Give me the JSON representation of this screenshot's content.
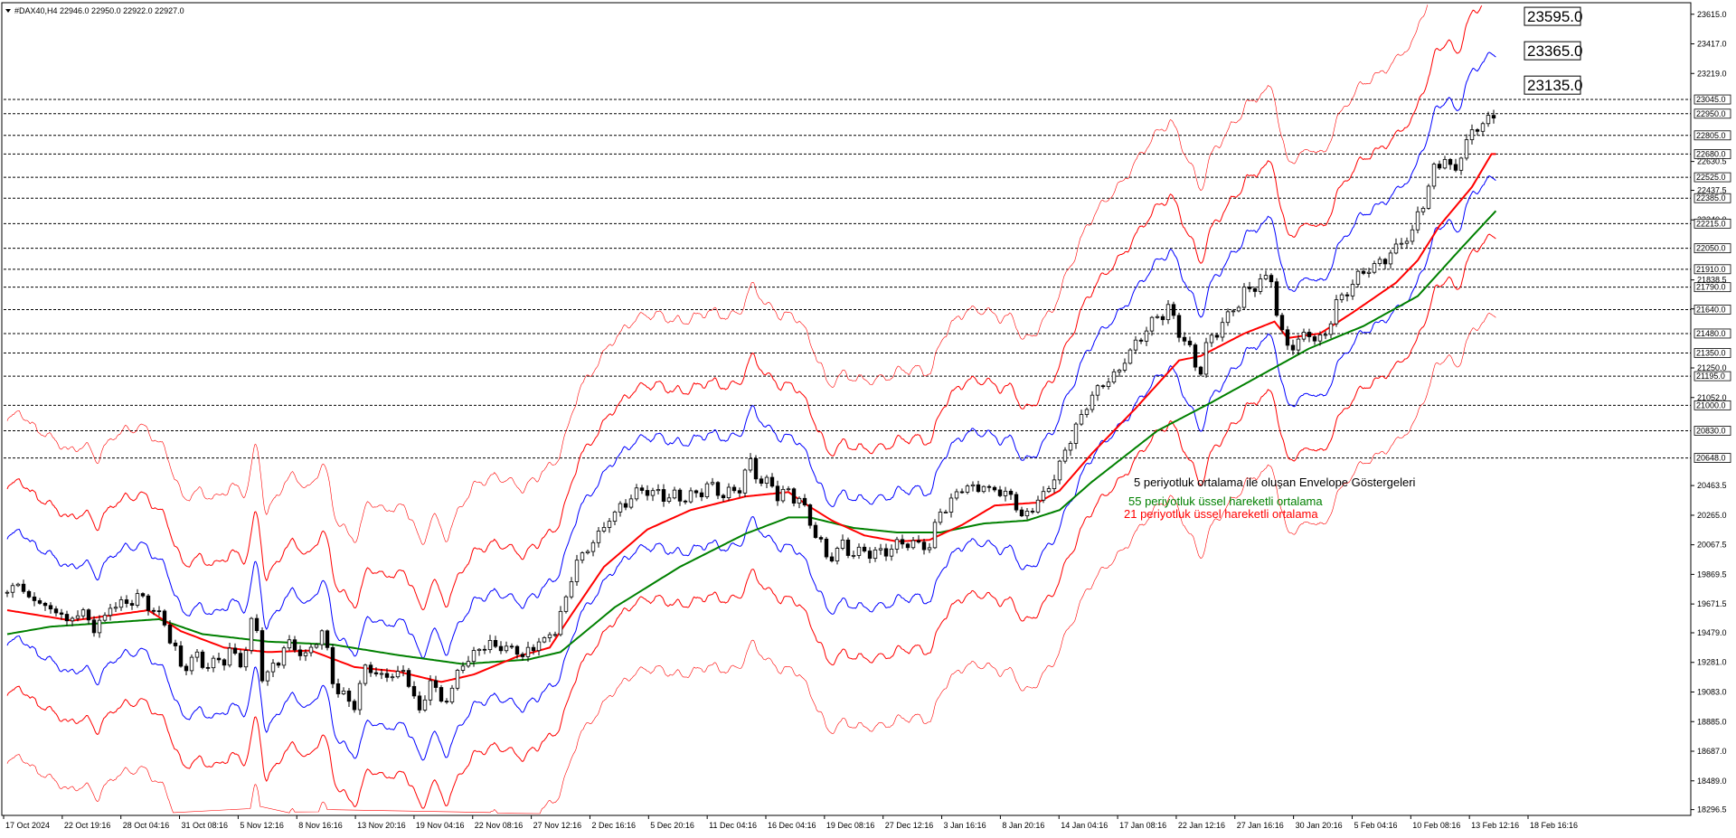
{
  "header": {
    "symbol_line": "#DAX40,H4  22946.0 22950.0 22922.0 22927.0"
  },
  "colors": {
    "up_candle": "#ffffff",
    "down_candle": "#000000",
    "ema21": "#ff0000",
    "ema55": "#008000",
    "inner_envelope": "#0000ff",
    "middle_envelope": "#ff0000",
    "outer_envelope": "#ff0000"
  },
  "annotations": {
    "title": "5 periyotluk ortalama ile oluşan Envelope Göstergeleri",
    "ema55": "55 periyotluk üssel hareketli ortalama",
    "ema21": "21 periyotluk üssel hareketli ortalama"
  },
  "chart_data": {
    "type": "candlestick",
    "ylim": [
      18270,
      23680
    ],
    "y_ticks": [
      "23615.0",
      "23417.0",
      "23219.0",
      "22630.5",
      "22437.5",
      "22240.0",
      "21838.5",
      "21645.0",
      "21250.0",
      "21052.0",
      "20463.5",
      "20265.0",
      "20067.5",
      "19869.5",
      "19671.5",
      "19479.0",
      "19281.0",
      "19083.0",
      "18885.0",
      "18687.0",
      "18489.0",
      "18296.5"
    ],
    "y_tick_values": [
      23615,
      23417,
      23219,
      22630.5,
      22437.5,
      22240,
      21838.5,
      21645,
      21250,
      21052,
      20463.5,
      20265,
      20067.5,
      19869.5,
      19671.5,
      19479,
      19281,
      19083,
      18885,
      18687,
      18489,
      18296.5
    ],
    "x_ticks": [
      "17 Oct 2024",
      "22 Oct 19:16",
      "28 Oct 04:16",
      "31 Oct 08:16",
      "5 Nov 12:16",
      "8 Nov 16:16",
      "13 Nov 20:16",
      "19 Nov 04:16",
      "22 Nov 08:16",
      "27 Nov 12:16",
      "2 Dec 16:16",
      "5 Dec 20:16",
      "11 Dec 04:16",
      "16 Dec 04:16",
      "19 Dec 08:16",
      "27 Dec 12:16",
      "3 Jan 16:16",
      "8 Jan 20:16",
      "14 Jan 04:16",
      "17 Jan 08:16",
      "22 Jan 12:16",
      "27 Jan 16:16",
      "30 Jan 20:16",
      "5 Feb 04:16",
      "10 Feb 08:16",
      "13 Feb 12:16",
      "18 Feb 16:16"
    ],
    "levels": [
      "23045.0",
      "22950.0",
      "22805.0",
      "22680.0",
      "22525.0",
      "22385.0",
      "22215.0",
      "22050.0",
      "21910.0",
      "21790.0",
      "21640.0",
      "21480.0",
      "21350.0",
      "21195.0",
      "21000.0",
      "20830.0",
      "20648.0"
    ],
    "level_values": [
      23045,
      22950,
      22805,
      22680,
      22525,
      22385,
      22215,
      22050,
      21910,
      21790,
      21640,
      21480,
      21350,
      21195,
      21000,
      20830,
      20648
    ],
    "envelope_labels": [
      "23595.0",
      "23365.0",
      "23135.0"
    ],
    "envelope_label_values": [
      23595,
      23365,
      23135
    ],
    "close_anchors": [
      [
        0,
        19750
      ],
      [
        10,
        19820
      ],
      [
        20,
        19720
      ],
      [
        30,
        19680
      ],
      [
        40,
        19640
      ],
      [
        55,
        19560
      ],
      [
        70,
        19600
      ],
      [
        80,
        19500
      ],
      [
        95,
        19650
      ],
      [
        110,
        19700
      ],
      [
        125,
        19720
      ],
      [
        145,
        19550
      ],
      [
        160,
        19250
      ],
      [
        175,
        19300
      ],
      [
        190,
        19250
      ],
      [
        205,
        19350
      ],
      [
        218,
        19280
      ],
      [
        228,
        19650
      ],
      [
        236,
        19150
      ],
      [
        248,
        19300
      ],
      [
        262,
        19420
      ],
      [
        275,
        19300
      ],
      [
        290,
        19500
      ],
      [
        300,
        19150
      ],
      [
        310,
        19050
      ],
      [
        320,
        19000
      ],
      [
        330,
        19250
      ],
      [
        345,
        19180
      ],
      [
        360,
        19220
      ],
      [
        372,
        19150
      ],
      [
        380,
        18920
      ],
      [
        390,
        19180
      ],
      [
        402,
        19000
      ],
      [
        415,
        19200
      ],
      [
        430,
        19350
      ],
      [
        445,
        19400
      ],
      [
        460,
        19380
      ],
      [
        475,
        19320
      ],
      [
        490,
        19420
      ],
      [
        505,
        19500
      ],
      [
        515,
        19700
      ],
      [
        525,
        19950
      ],
      [
        540,
        20100
      ],
      [
        555,
        20250
      ],
      [
        570,
        20350
      ],
      [
        585,
        20420
      ],
      [
        600,
        20420
      ],
      [
        615,
        20380
      ],
      [
        630,
        20400
      ],
      [
        645,
        20450
      ],
      [
        660,
        20400
      ],
      [
        675,
        20450
      ],
      [
        685,
        20620
      ],
      [
        695,
        20500
      ],
      [
        710,
        20420
      ],
      [
        722,
        20420
      ],
      [
        730,
        20380
      ],
      [
        738,
        20250
      ],
      [
        748,
        20100
      ],
      [
        755,
        19950
      ],
      [
        765,
        20050
      ],
      [
        780,
        20020
      ],
      [
        795,
        20000
      ],
      [
        810,
        20030
      ],
      [
        825,
        20070
      ],
      [
        840,
        20080
      ],
      [
        850,
        20050
      ],
      [
        858,
        20250
      ],
      [
        870,
        20380
      ],
      [
        885,
        20450
      ],
      [
        900,
        20450
      ],
      [
        915,
        20400
      ],
      [
        925,
        20400
      ],
      [
        935,
        20250
      ],
      [
        945,
        20300
      ],
      [
        955,
        20400
      ],
      [
        965,
        20500
      ],
      [
        975,
        20700
      ],
      [
        985,
        20850
      ],
      [
        995,
        21000
      ],
      [
        1010,
        21150
      ],
      [
        1025,
        21250
      ],
      [
        1040,
        21400
      ],
      [
        1055,
        21550
      ],
      [
        1070,
        21650
      ],
      [
        1080,
        21500
      ],
      [
        1090,
        21350
      ],
      [
        1098,
        21200
      ],
      [
        1108,
        21450
      ],
      [
        1120,
        21550
      ],
      [
        1135,
        21700
      ],
      [
        1150,
        21800
      ],
      [
        1165,
        21870
      ],
      [
        1170,
        21620
      ],
      [
        1178,
        21380
      ],
      [
        1188,
        21420
      ],
      [
        1200,
        21480
      ],
      [
        1212,
        21420
      ],
      [
        1222,
        21640
      ],
      [
        1235,
        21780
      ],
      [
        1250,
        21900
      ],
      [
        1265,
        21950
      ],
      [
        1280,
        22050
      ],
      [
        1295,
        22150
      ],
      [
        1300,
        22300
      ],
      [
        1308,
        22380
      ],
      [
        1315,
        22600
      ],
      [
        1325,
        22640
      ],
      [
        1335,
        22560
      ],
      [
        1345,
        22780
      ],
      [
        1352,
        22850
      ],
      [
        1360,
        22900
      ],
      [
        1368,
        22950
      ],
      [
        1372,
        22927
      ]
    ],
    "ema21_anchors": [
      [
        0,
        19630
      ],
      [
        60,
        19560
      ],
      [
        130,
        19630
      ],
      [
        160,
        19490
      ],
      [
        200,
        19380
      ],
      [
        240,
        19350
      ],
      [
        280,
        19360
      ],
      [
        320,
        19250
      ],
      [
        360,
        19220
      ],
      [
        400,
        19150
      ],
      [
        430,
        19200
      ],
      [
        470,
        19320
      ],
      [
        500,
        19380
      ],
      [
        520,
        19600
      ],
      [
        550,
        19920
      ],
      [
        590,
        20170
      ],
      [
        630,
        20300
      ],
      [
        680,
        20390
      ],
      [
        720,
        20420
      ],
      [
        740,
        20320
      ],
      [
        760,
        20230
      ],
      [
        790,
        20130
      ],
      [
        820,
        20090
      ],
      [
        850,
        20100
      ],
      [
        880,
        20200
      ],
      [
        910,
        20330
      ],
      [
        930,
        20340
      ],
      [
        950,
        20350
      ],
      [
        970,
        20430
      ],
      [
        1000,
        20680
      ],
      [
        1040,
        20980
      ],
      [
        1080,
        21300
      ],
      [
        1100,
        21330
      ],
      [
        1140,
        21480
      ],
      [
        1168,
        21560
      ],
      [
        1180,
        21450
      ],
      [
        1210,
        21480
      ],
      [
        1240,
        21620
      ],
      [
        1280,
        21820
      ],
      [
        1300,
        21970
      ],
      [
        1320,
        22200
      ],
      [
        1350,
        22460
      ],
      [
        1368,
        22680
      ]
    ],
    "ema55_anchors": [
      [
        0,
        19470
      ],
      [
        40,
        19520
      ],
      [
        140,
        19570
      ],
      [
        180,
        19470
      ],
      [
        240,
        19420
      ],
      [
        300,
        19400
      ],
      [
        360,
        19330
      ],
      [
        420,
        19270
      ],
      [
        480,
        19300
      ],
      [
        510,
        19350
      ],
      [
        560,
        19650
      ],
      [
        620,
        19920
      ],
      [
        680,
        20140
      ],
      [
        720,
        20250
      ],
      [
        740,
        20250
      ],
      [
        780,
        20180
      ],
      [
        820,
        20150
      ],
      [
        860,
        20150
      ],
      [
        900,
        20210
      ],
      [
        940,
        20230
      ],
      [
        970,
        20300
      ],
      [
        1000,
        20490
      ],
      [
        1060,
        20830
      ],
      [
        1110,
        21020
      ],
      [
        1160,
        21220
      ],
      [
        1200,
        21380
      ],
      [
        1250,
        21530
      ],
      [
        1300,
        21730
      ],
      [
        1340,
        22050
      ],
      [
        1372,
        22300
      ]
    ],
    "envelope_offsets": [
      1.8,
      3.5,
      5.8
    ]
  }
}
